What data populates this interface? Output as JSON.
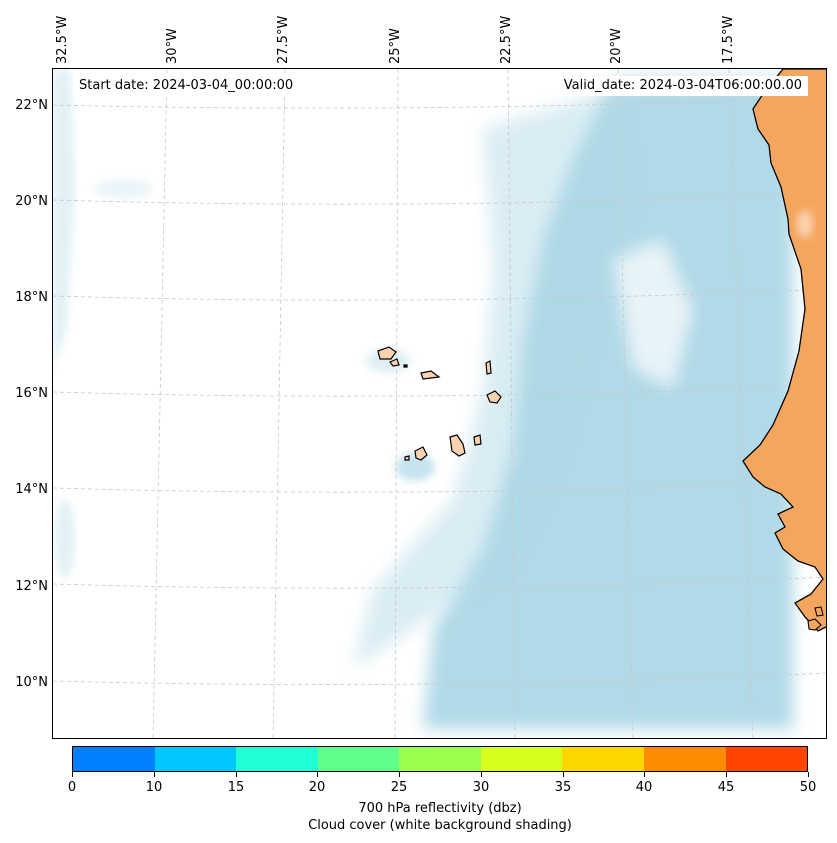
{
  "map": {
    "start_date": "Start date: 2024-03-04_00:00:00",
    "valid_date": "Valid_date: 2024-03-04T06:00:00.00",
    "lon_ticks": [
      "32.5°W",
      "30°W",
      "27.5°W",
      "25°W",
      "22.5°W",
      "20°W",
      "17.5°W"
    ],
    "lat_ticks": [
      "22°N",
      "20°N",
      "18°N",
      "16°N",
      "14°N",
      "12°N",
      "10°N"
    ],
    "land_color": "#f4a65e",
    "island_color": "#fad2b0",
    "cloud_color": "#add8e6",
    "graticule": "dashed light grey"
  },
  "colorbar": {
    "ticks": [
      "0",
      "10",
      "15",
      "20",
      "25",
      "30",
      "35",
      "40",
      "45",
      "50"
    ],
    "colors": [
      "#0080ff",
      "#00c8ff",
      "#1effd6",
      "#5fff8a",
      "#9bff4e",
      "#d6ff1e",
      "#ffd700",
      "#ff8c00",
      "#ff4500"
    ],
    "label": "700 hPa reflectivity (dbz)",
    "sublabel": "Cloud cover (white background shading)"
  }
}
